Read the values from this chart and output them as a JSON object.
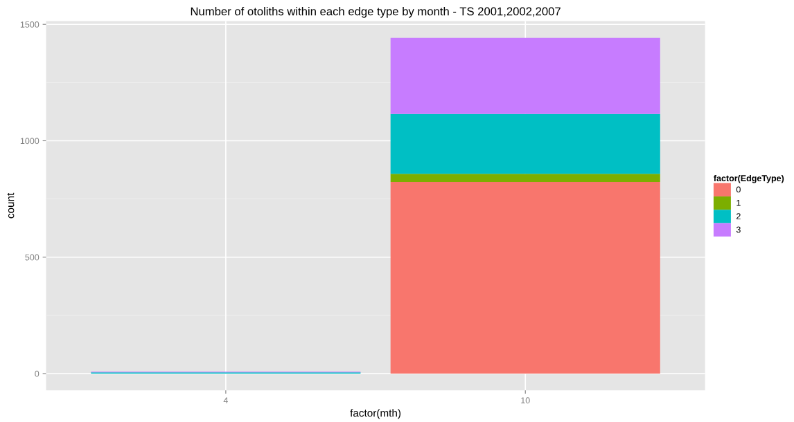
{
  "chart_data": {
    "type": "bar",
    "title": "Number of otoliths within each edge type by month - TS 2001,2002,2007",
    "xlabel": "factor(mth)",
    "ylabel": "count",
    "legend_title": "factor(EdgeType)",
    "categories": [
      "4",
      "10"
    ],
    "stacked": true,
    "series": [
      {
        "name": "0",
        "color": "#f8766d",
        "values": [
          null,
          823
        ]
      },
      {
        "name": "1",
        "color": "#7cae00",
        "values": [
          0,
          35
        ]
      },
      {
        "name": "2",
        "color": "#00bfc4",
        "values": [
          5,
          257
        ]
      },
      {
        "name": "3",
        "color": "#c77cff",
        "values": [
          3,
          327
        ]
      }
    ],
    "ylim": [
      -72,
      1514
    ],
    "yticks": [
      0,
      500,
      1000,
      1500
    ],
    "grid": true,
    "legend": "right"
  }
}
